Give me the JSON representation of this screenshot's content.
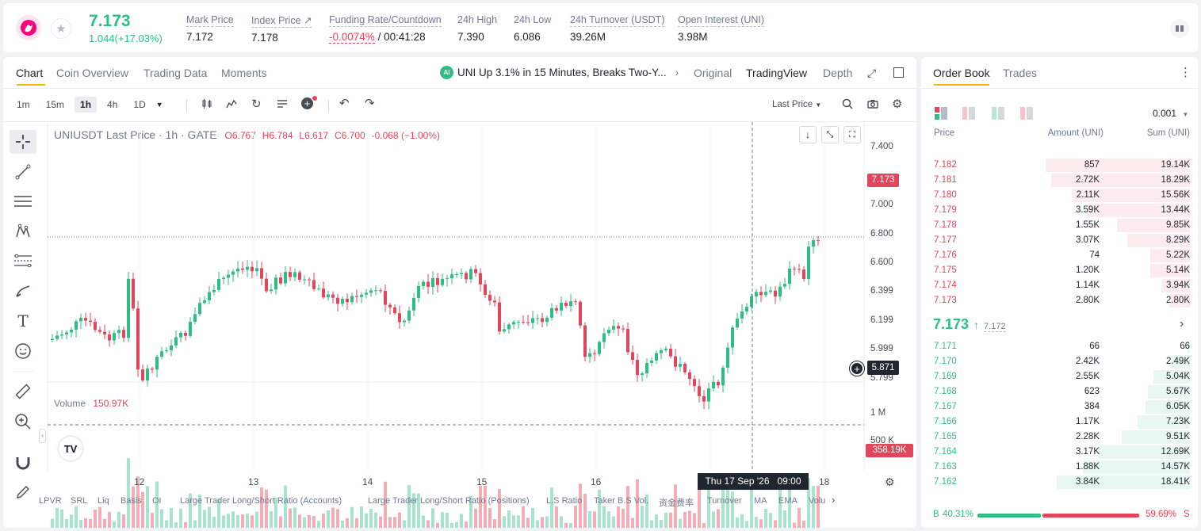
{
  "header": {
    "price": "7.173",
    "change": "1.044(+17.03%)",
    "stats": [
      {
        "label": "Mark Price",
        "value": "7.172"
      },
      {
        "label": "Index Price ↗",
        "value": "7.178"
      },
      {
        "label": "Funding Rate/Countdown",
        "value_rate": "-0.0074%",
        "value_countdown": "/ 00:41:28"
      },
      {
        "label": "24h High",
        "value": "7.390"
      },
      {
        "label": "24h Low",
        "value": "6.086"
      },
      {
        "label": "24h Turnover (USDT)",
        "value": "39.26M"
      },
      {
        "label": "Open Interest (UNI)",
        "value": "3.98M"
      }
    ]
  },
  "chart_tabs": [
    "Chart",
    "Coin Overview",
    "Trading Data",
    "Moments"
  ],
  "news": {
    "text": "UNI Up 3.1% in 15 Minutes, Breaks Two-Y...",
    "icon_label": "AI"
  },
  "view_tabs": [
    "Original",
    "TradingView",
    "Depth"
  ],
  "timeframes": [
    "1m",
    "15m",
    "1h",
    "4h",
    "1D"
  ],
  "price_type": "Last Price",
  "legend": {
    "title": "UNIUSDT Last Price · 1h · GATE",
    "o": "O6.767",
    "h": "H6.784",
    "l": "L6.617",
    "c": "C6.700",
    "chg": "-0.068 (−1.00%)"
  },
  "price_axis": [
    "7.400",
    "7.000",
    "6.800",
    "6.600",
    "6.399",
    "6.199",
    "5.999",
    "5.799"
  ],
  "last_price_tag": "7.173",
  "crosshair_tag": "5.871",
  "volume_label": "Volume",
  "volume_value": "150.97K",
  "volume_axis": [
    "1 M",
    "500 K"
  ],
  "volume_tag": "358.19K",
  "time_axis": [
    "12",
    "13",
    "14",
    "15",
    "16",
    "18"
  ],
  "crosshair_time": "Thu 17 Sep '26   09:00",
  "bottom_indicators": [
    "LPVR",
    "SRL",
    "Liq",
    "Basis",
    "OI",
    "Large Trader Long/Short Ratio (Accounts)",
    "Large Trader Long/Short Ratio (Positions)",
    "L.S Ratio",
    "Taker B.S Vol.",
    "资金费率",
    "Turnover",
    "MA",
    "EMA",
    "Volu"
  ],
  "orderbook": {
    "tabs": [
      "Order Book",
      "Trades"
    ],
    "precision": "0.001",
    "headers": [
      "Price",
      "Amount (UNI)",
      "Sum (UNI)"
    ],
    "asks": [
      {
        "price": "7.182",
        "amount": "857",
        "sum": "19.14K",
        "depth": 0.55
      },
      {
        "price": "7.181",
        "amount": "2.72K",
        "sum": "18.29K",
        "depth": 0.53
      },
      {
        "price": "7.180",
        "amount": "2.11K",
        "sum": "15.56K",
        "depth": 0.45
      },
      {
        "price": "7.179",
        "amount": "3.59K",
        "sum": "13.44K",
        "depth": 0.39
      },
      {
        "price": "7.178",
        "amount": "1.55K",
        "sum": "9.85K",
        "depth": 0.28
      },
      {
        "price": "7.177",
        "amount": "3.07K",
        "sum": "8.29K",
        "depth": 0.24
      },
      {
        "price": "7.176",
        "amount": "74",
        "sum": "5.22K",
        "depth": 0.15
      },
      {
        "price": "7.175",
        "amount": "1.20K",
        "sum": "5.14K",
        "depth": 0.15
      },
      {
        "price": "7.174",
        "amount": "1.14K",
        "sum": "3.94K",
        "depth": 0.11
      },
      {
        "price": "7.173",
        "amount": "2.80K",
        "sum": "2.80K",
        "depth": 0.08
      }
    ],
    "mid_price": "7.173",
    "mid_mark": "7.172",
    "bids": [
      {
        "price": "7.171",
        "amount": "66",
        "sum": "66",
        "depth": 0.01
      },
      {
        "price": "7.170",
        "amount": "2.42K",
        "sum": "2.49K",
        "depth": 0.07
      },
      {
        "price": "7.169",
        "amount": "2.55K",
        "sum": "5.04K",
        "depth": 0.14
      },
      {
        "price": "7.168",
        "amount": "623",
        "sum": "5.67K",
        "depth": 0.16
      },
      {
        "price": "7.167",
        "amount": "384",
        "sum": "6.05K",
        "depth": 0.17
      },
      {
        "price": "7.166",
        "amount": "1.17K",
        "sum": "7.23K",
        "depth": 0.2
      },
      {
        "price": "7.165",
        "amount": "2.28K",
        "sum": "9.51K",
        "depth": 0.26
      },
      {
        "price": "7.164",
        "amount": "3.17K",
        "sum": "12.69K",
        "depth": 0.35
      },
      {
        "price": "7.163",
        "amount": "1.88K",
        "sum": "14.57K",
        "depth": 0.41
      },
      {
        "price": "7.162",
        "amount": "3.84K",
        "sum": "18.41K",
        "depth": 0.51
      }
    ],
    "buy_ratio": "40.31%",
    "sell_ratio": "59.69%",
    "buy_label": "B",
    "sell_label": "S"
  },
  "colors": {
    "up": "#2ebd85",
    "down": "#e0475a",
    "accent": "#f0b90b",
    "brand": "#ff007a"
  }
}
